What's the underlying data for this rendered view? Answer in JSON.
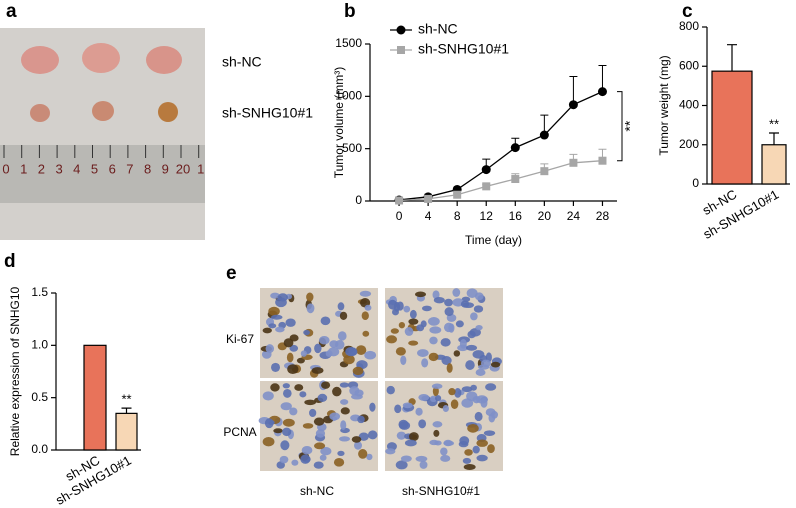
{
  "photo_a": {
    "panel": "a",
    "rows": [
      "sh-NC",
      "sh-SNHG10#1"
    ],
    "ruler": [
      "0",
      "1",
      "2",
      "3",
      "4",
      "5",
      "6",
      "7",
      "8",
      "9",
      "20",
      "1"
    ]
  },
  "chart_data": [
    {
      "type": "line",
      "panel": "b",
      "x_label": "Time (day)",
      "y_label": "Tumor volume (mm³)",
      "annotation": "**",
      "x": [
        0,
        4,
        8,
        12,
        16,
        20,
        24,
        28
      ],
      "xlim": [
        -4,
        30
      ],
      "xticks": [
        0,
        4,
        8,
        12,
        16,
        20,
        24,
        28
      ],
      "ylim": [
        0,
        1500
      ],
      "yticks": [
        0,
        500,
        1000,
        1500
      ],
      "legend": "top-left",
      "series": [
        {
          "name": "sh-NC",
          "color": "#000000",
          "marker": "circle",
          "values": [
            10,
            40,
            110,
            300,
            510,
            630,
            920,
            1045
          ],
          "errors": [
            0,
            5,
            10,
            100,
            90,
            190,
            270,
            250
          ]
        },
        {
          "name": "sh-SNHG10#1",
          "color": "#a6a6a6",
          "marker": "square",
          "values": [
            5,
            20,
            60,
            140,
            210,
            285,
            365,
            385
          ],
          "errors": [
            0,
            5,
            10,
            20,
            50,
            70,
            80,
            110
          ]
        }
      ]
    },
    {
      "type": "bar",
      "panel": "c",
      "y_label": "Tumor weight (mg)",
      "categories": [
        "sh-NC",
        "sh-SNHG10#1"
      ],
      "values": [
        575,
        200
      ],
      "errors": [
        135,
        60
      ],
      "value_labels": [
        null,
        "**"
      ],
      "colors": [
        "#e8735a",
        "#f7d7b5"
      ],
      "ylim": [
        0,
        800
      ],
      "yticks": [
        0,
        200,
        400,
        600,
        800
      ]
    },
    {
      "type": "bar",
      "panel": "d",
      "y_label": "Relative expression of SNHG10",
      "categories": [
        "sh-NC",
        "sh-SNHG10#1"
      ],
      "values": [
        1.0,
        0.35
      ],
      "errors": [
        0,
        0.05
      ],
      "value_labels": [
        null,
        "**"
      ],
      "colors": [
        "#e8735a",
        "#f7d7b5"
      ],
      "ylim": [
        0,
        1.5
      ],
      "yticks": [
        {
          "value": 0,
          "label": "0.0"
        },
        {
          "value": 0.5,
          "label": "0.5"
        },
        {
          "value": 1,
          "label": "1.0"
        },
        {
          "value": 1.5,
          "label": "1.5"
        }
      ]
    }
  ],
  "photo_e": {
    "panel": "e",
    "rows": [
      "Ki-67",
      "PCNA"
    ],
    "columns": [
      "sh-NC",
      "sh-SNHG10#1"
    ]
  }
}
